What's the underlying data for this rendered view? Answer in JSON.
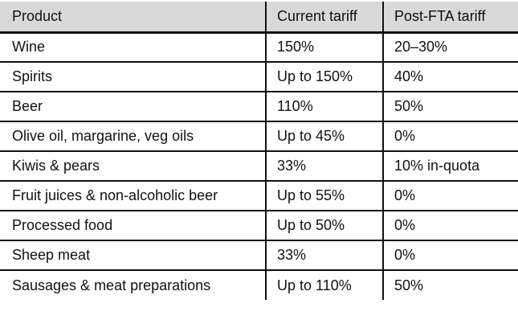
{
  "chart_data": {
    "type": "table",
    "title": "",
    "columns": [
      "Product",
      "Current tariff",
      "Post-FTA tariff"
    ],
    "rows": [
      [
        "Wine",
        "150%",
        "20–30%"
      ],
      [
        "Spirits",
        "Up to 150%",
        "40%"
      ],
      [
        "Beer",
        "110%",
        "50%"
      ],
      [
        "Olive oil, margarine, veg oils",
        "Up to 45%",
        "0%"
      ],
      [
        "Kiwis & pears",
        "33%",
        "10% in-quota"
      ],
      [
        "Fruit juices & non-alcoholic beer",
        "Up to 55%",
        "0%"
      ],
      [
        "Processed food",
        "Up to 50%",
        "0%"
      ],
      [
        "Sheep meat",
        "33%",
        "0%"
      ],
      [
        "Sausages & meat preparations",
        "Up to 110%",
        "50%"
      ]
    ]
  },
  "colors": {
    "header_bg": "#d9d9d9",
    "grid": "#111111",
    "text": "#111111",
    "page_bg": "#ffffff"
  }
}
